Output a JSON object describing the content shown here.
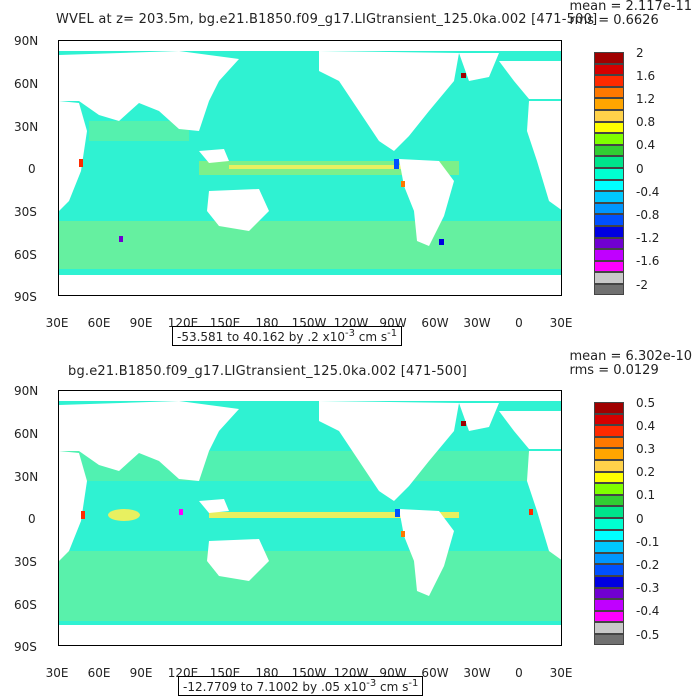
{
  "panels": [
    {
      "title": "WVEL at z= 203.5m, bg.e21.B1850.f09_g17.LIGtransient_125.0ka.002 [471-500]",
      "stats_mean": "mean = 2.117e-11",
      "stats_rms": "rms = 0.6626",
      "range_label": "-53.581 to 40.162 by .2 x10",
      "range_exp": "-3",
      "range_unit": "cm s",
      "range_unit_exp": "-1",
      "colorbar_labels": [
        "2",
        "1.6",
        "1.2",
        "0.8",
        "0.4",
        "0",
        "-0.4",
        "-0.8",
        "-1.2",
        "-1.6",
        "-2"
      ]
    },
    {
      "title": "bg.e21.B1850.f09_g17.LIGtransient_125.0ka.002 [471-500]",
      "title_overlap": "b.e21.B1850.f09_g17",
      "stats_mean": "mean = 6.302e-10",
      "stats_rms": "rms = 0.0129",
      "range_label": "-12.7709 to 7.1002 by .05 x10",
      "range_exp": "-3",
      "range_unit": "cm s",
      "range_unit_exp": "-1",
      "colorbar_labels": [
        "0.5",
        "0.4",
        "0.3",
        "0.2",
        "0.1",
        "0",
        "-0.1",
        "-0.2",
        "-0.3",
        "-0.4",
        "-0.5"
      ]
    }
  ],
  "axes": {
    "lat_ticks": [
      "90N",
      "60N",
      "30N",
      "0",
      "30S",
      "60S",
      "90S"
    ],
    "lon_ticks": [
      "30E",
      "60E",
      "90E",
      "120E",
      "150E",
      "180",
      "150W",
      "120W",
      "90W",
      "60W",
      "30W",
      "0",
      "30E"
    ]
  },
  "colorbar_colors": [
    "#a00000",
    "#d40000",
    "#ff2a00",
    "#ff7800",
    "#ffa500",
    "#ffd24a",
    "#ffff00",
    "#7fff00",
    "#32cd32",
    "#00e58c",
    "#00ffd0",
    "#00ffff",
    "#00c8ff",
    "#0096ff",
    "#0050ff",
    "#0000e0",
    "#7000d0",
    "#c000ff",
    "#ff00ff",
    "#c8c8c8",
    "#707070"
  ],
  "field_colors": {
    "ocean": "#2ff2d2",
    "bands_positive": "#7cf08a",
    "bands_yellow": "#e8f060",
    "land": "#ffffff"
  }
}
